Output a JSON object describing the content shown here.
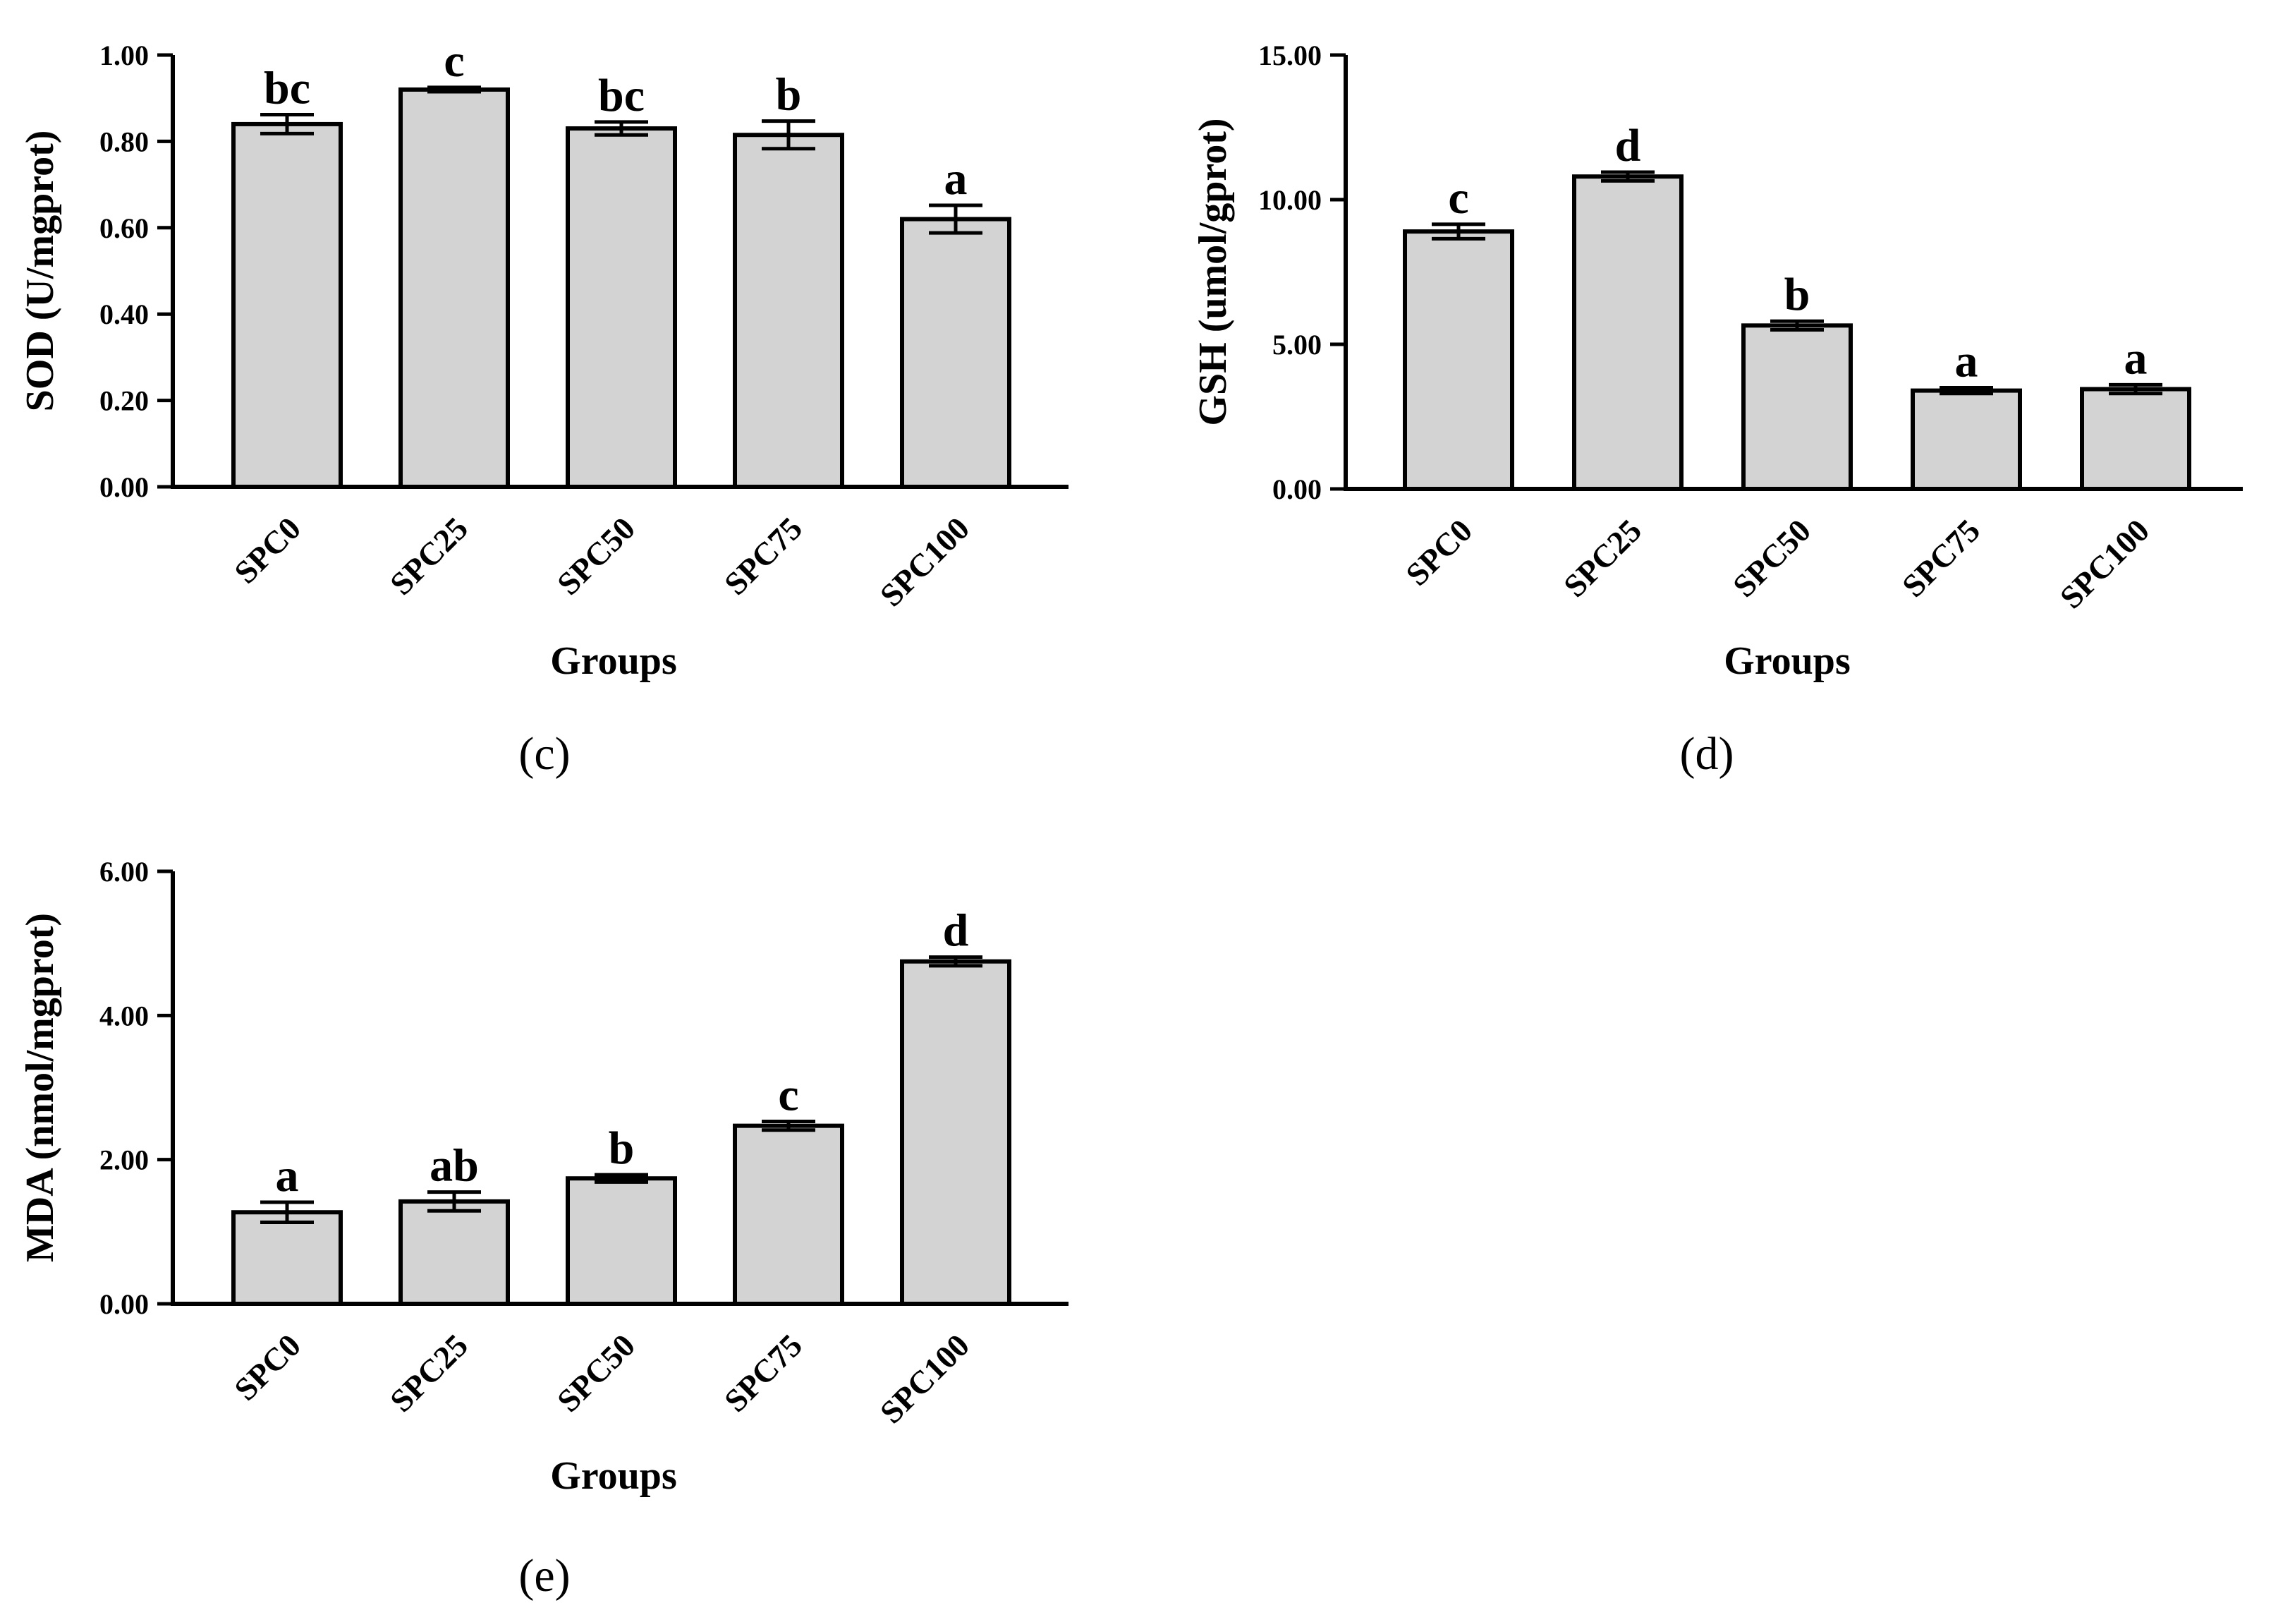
{
  "chart_data": [
    {
      "id": "c",
      "type": "bar",
      "panel_label": "(c)",
      "categories": [
        "SPC0",
        "SPC25",
        "SPC50",
        "SPC75",
        "SPC100"
      ],
      "values": [
        0.84,
        0.92,
        0.83,
        0.815,
        0.62
      ],
      "errors": [
        0.022,
        0.005,
        0.015,
        0.032,
        0.032
      ],
      "significance": [
        "bc",
        "c",
        "bc",
        "b",
        "a"
      ],
      "xlabel": "Groups",
      "ylabel": "SOD (U/mgprot)",
      "ylim": [
        0,
        1.0
      ],
      "yticks": [
        0.0,
        0.2,
        0.4,
        0.6,
        0.8,
        1.0
      ],
      "ytick_labels": [
        "0.00",
        "0.20",
        "0.40",
        "0.60",
        "0.80",
        "1.00"
      ]
    },
    {
      "id": "d",
      "type": "bar",
      "panel_label": "(d)",
      "categories": [
        "SPC0",
        "SPC25",
        "SPC50",
        "SPC75",
        "SPC100"
      ],
      "values": [
        8.9,
        10.8,
        5.65,
        3.4,
        3.45
      ],
      "errors": [
        0.25,
        0.15,
        0.15,
        0.1,
        0.15
      ],
      "significance": [
        "c",
        "d",
        "b",
        "a",
        "a"
      ],
      "xlabel": "Groups",
      "ylabel": "GSH (umol/gprot)",
      "ylim": [
        0,
        15.0
      ],
      "yticks": [
        0.0,
        5.0,
        10.0,
        15.0
      ],
      "ytick_labels": [
        "0.00",
        "5.00",
        "10.00",
        "15.00"
      ]
    },
    {
      "id": "e",
      "type": "bar",
      "panel_label": "(e)",
      "categories": [
        "SPC0",
        "SPC25",
        "SPC50",
        "SPC75",
        "SPC100"
      ],
      "values": [
        1.27,
        1.42,
        1.74,
        2.47,
        4.75
      ],
      "errors": [
        0.14,
        0.13,
        0.05,
        0.06,
        0.06
      ],
      "significance": [
        "a",
        "ab",
        "b",
        "c",
        "d"
      ],
      "xlabel": "Groups",
      "ylabel": "MDA (nmol/mgprot)",
      "ylim": [
        0,
        6.0
      ],
      "yticks": [
        0.0,
        2.0,
        4.0,
        6.0
      ],
      "ytick_labels": [
        "0.00",
        "2.00",
        "4.00",
        "6.00"
      ]
    }
  ]
}
